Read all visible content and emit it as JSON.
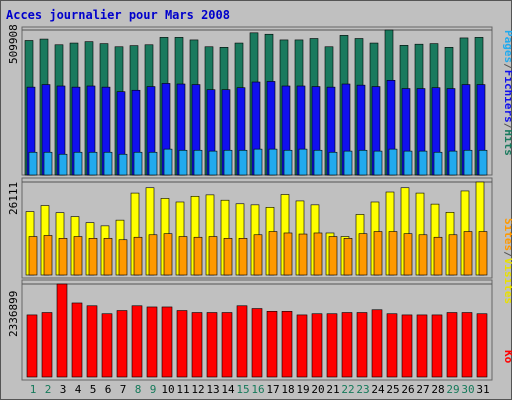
{
  "chart_data": [
    {
      "type": "bar",
      "title": "Acces journalier pour Mars 2008",
      "categories": [
        "1",
        "2",
        "3",
        "4",
        "5",
        "6",
        "7",
        "8",
        "9",
        "10",
        "11",
        "12",
        "13",
        "14",
        "15",
        "16",
        "17",
        "18",
        "19",
        "20",
        "21",
        "22",
        "23",
        "24",
        "25",
        "26",
        "27",
        "28",
        "29",
        "30",
        "31"
      ],
      "weekend_days": [
        "1",
        "2",
        "8",
        "9",
        "15",
        "16",
        "22",
        "23",
        "29",
        "30"
      ],
      "ylim": [
        0,
        509908
      ],
      "ytick_label": "509908",
      "side_label": [
        "Pages",
        "/",
        "Fichiers",
        "/",
        "Hits"
      ],
      "series": [
        {
          "name": "Hits",
          "color": "#1a7a5e",
          "values": [
            473000,
            478000,
            458000,
            464000,
            469000,
            462000,
            451000,
            455000,
            458000,
            484000,
            484000,
            475000,
            451000,
            449000,
            464000,
            500000,
            495000,
            475000,
            475000,
            480000,
            451000,
            491000,
            480000,
            464000,
            509908,
            456000,
            460000,
            462000,
            449000,
            482000,
            484000
          ]
        },
        {
          "name": "Fichiers",
          "color": "#1010ee",
          "values": [
            309000,
            318000,
            313000,
            309000,
            313000,
            309000,
            293000,
            298000,
            311000,
            322000,
            320000,
            318000,
            300000,
            300000,
            307000,
            327000,
            329000,
            313000,
            313000,
            311000,
            309000,
            320000,
            316000,
            311000,
            333000,
            304000,
            304000,
            307000,
            304000,
            318000,
            318000
          ]
        },
        {
          "name": "Pages",
          "color": "#22aaee",
          "values": [
            80000,
            80000,
            73000,
            80000,
            80000,
            80000,
            73000,
            80000,
            80000,
            91000,
            87000,
            87000,
            84000,
            87000,
            87000,
            91000,
            91000,
            87000,
            91000,
            87000,
            80000,
            84000,
            87000,
            84000,
            91000,
            84000,
            84000,
            80000,
            84000,
            87000,
            87000
          ]
        }
      ]
    },
    {
      "type": "bar",
      "categories": [
        "1",
        "2",
        "3",
        "4",
        "5",
        "6",
        "7",
        "8",
        "9",
        "10",
        "11",
        "12",
        "13",
        "14",
        "15",
        "16",
        "17",
        "18",
        "19",
        "20",
        "21",
        "22",
        "23",
        "24",
        "25",
        "26",
        "27",
        "28",
        "29",
        "30",
        "31"
      ],
      "ylim": [
        0,
        26111
      ],
      "ytick_label": "26111",
      "side_label": [
        "Sites",
        "/",
        "Visites"
      ],
      "series": [
        {
          "name": "Visites",
          "color": "#ffff00",
          "values": [
            17800,
            19500,
            17500,
            16400,
            14700,
            13800,
            15400,
            23000,
            24500,
            21500,
            20500,
            22100,
            22500,
            21000,
            20000,
            19700,
            19000,
            22600,
            20800,
            19700,
            11800,
            10800,
            17000,
            20500,
            23300,
            24500,
            23000,
            19900,
            17600,
            23600,
            26111
          ]
        },
        {
          "name": "Sites",
          "color": "#ff9900",
          "values": [
            10800,
            11100,
            10300,
            10800,
            10300,
            10300,
            9900,
            10600,
            11300,
            11600,
            10800,
            10600,
            10800,
            10300,
            10300,
            11300,
            12200,
            11800,
            11500,
            11800,
            10800,
            10300,
            11600,
            12200,
            12200,
            11600,
            11300,
            10600,
            11300,
            12200,
            12200
          ]
        }
      ]
    },
    {
      "type": "bar",
      "categories": [
        "1",
        "2",
        "3",
        "4",
        "5",
        "6",
        "7",
        "8",
        "9",
        "10",
        "11",
        "12",
        "13",
        "14",
        "15",
        "16",
        "17",
        "18",
        "19",
        "20",
        "21",
        "22",
        "23",
        "24",
        "25",
        "26",
        "27",
        "28",
        "29",
        "30",
        "31"
      ],
      "ylim": [
        0,
        2336899
      ],
      "ytick_label": "2336899",
      "side_label": [
        "Ko"
      ],
      "series": [
        {
          "name": "Ko",
          "color": "#ff0000",
          "values": [
            1560000,
            1620000,
            2336899,
            1860000,
            1790000,
            1590000,
            1670000,
            1790000,
            1760000,
            1760000,
            1670000,
            1620000,
            1620000,
            1620000,
            1790000,
            1720000,
            1650000,
            1650000,
            1560000,
            1590000,
            1590000,
            1620000,
            1620000,
            1690000,
            1590000,
            1560000,
            1560000,
            1560000,
            1620000,
            1620000,
            1590000
          ]
        }
      ]
    }
  ],
  "colors": {
    "title": "#0000cc",
    "background": "#c0c0c0",
    "weekday_label": "#000000",
    "weekend_label": "#157a5a",
    "label_colors": {
      "Pages": "#22aaee",
      "Fichiers": "#1010ee",
      "Hits": "#1a7a5e",
      "Sites": "#ff9900",
      "Visites": "#e8e000",
      "Ko": "#ff0000",
      "/": "#555555"
    }
  }
}
